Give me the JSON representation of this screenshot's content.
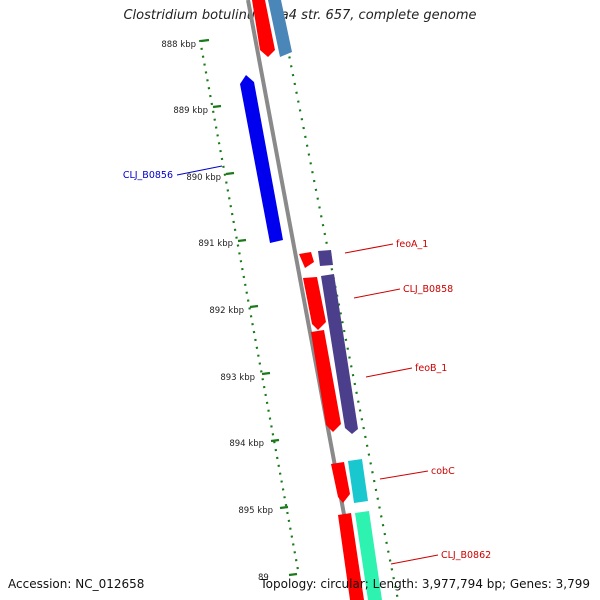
{
  "title": "Clostridium botulinum Ba4 str. 657, complete genome",
  "accession": "Accession: NC_012658",
  "summary": "Topology: circular; Length: 3,977,794 bp; Genes: 3,799",
  "ticks": [
    "888 kbp",
    "889 kbp",
    "890 kbp",
    "891 kbp",
    "892 kbp",
    "893 kbp",
    "894 kbp",
    "895 kbp",
    "89"
  ],
  "gene_labels": {
    "clj_b0856": "CLJ_B0856",
    "feoA_1": "feoA_1",
    "clj_b0858": "CLJ_B0858",
    "feoB_1": "feoB_1",
    "cobC": "cobC",
    "clj_b0862": "CLJ_B0862"
  },
  "colors": {
    "backbone": "#8a8a8a",
    "tick": "#1a7a1a",
    "cds_red": "#ff0000",
    "gene_blue": "#0000ee",
    "gene_steel": "#4a86b8",
    "gene_purple": "#4b3f8c",
    "gene_cyan": "#19c7cf",
    "gene_green": "#2ef2b0",
    "label_red": "#cc0000",
    "label_blue": "#0000cc"
  }
}
